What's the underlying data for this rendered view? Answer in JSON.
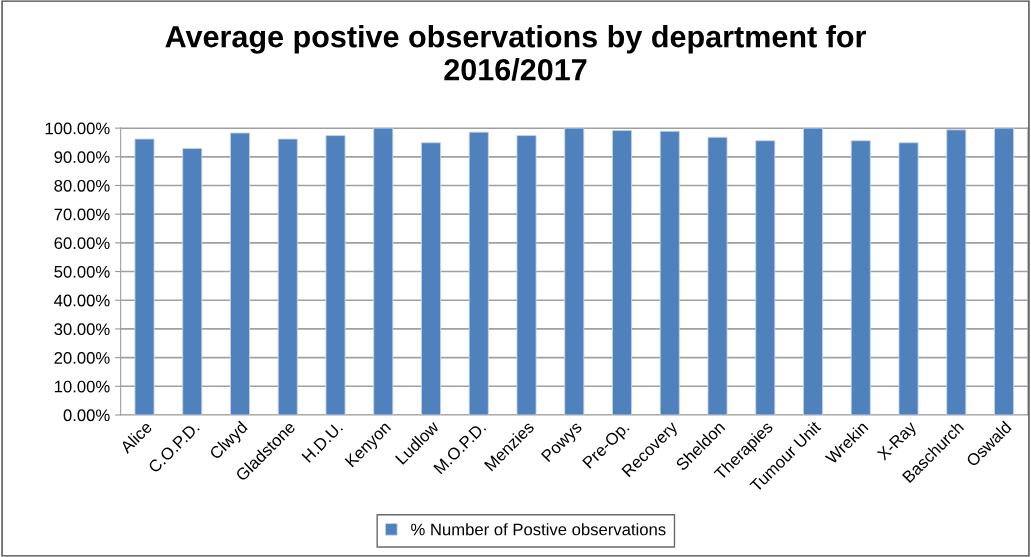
{
  "chart_data": {
    "type": "bar",
    "title": "Average postive observations by department for\n2016/2017",
    "categories": [
      "Alice",
      "C.O.P.D.",
      "Clwyd",
      "Gladstone",
      "H.D.U.",
      "Kenyon",
      "Ludlow",
      "M.O.P.D.",
      "Menzies",
      "Powys",
      "Pre-Op.",
      "Recovery",
      "Sheldon",
      "Therapies",
      "Tumour Unit",
      "Wrekin",
      "X-Ray",
      "Baschurch",
      "Oswald"
    ],
    "series": [
      {
        "name": "% Number of Postive observations",
        "color": "#4f81bd",
        "values": [
          96.2,
          92.9,
          98.3,
          96.2,
          97.4,
          100,
          94.9,
          98.6,
          97.4,
          100,
          99.2,
          98.9,
          96.8,
          95.6,
          100,
          95.6,
          94.9,
          99.4,
          100
        ]
      }
    ],
    "ylim": [
      0,
      100
    ],
    "yticks": [
      {
        "value": 0,
        "label": "0.00%"
      },
      {
        "value": 10,
        "label": "10.00%"
      },
      {
        "value": 20,
        "label": "20.00%"
      },
      {
        "value": 30,
        "label": "30.00%"
      },
      {
        "value": 40,
        "label": "40.00%"
      },
      {
        "value": 50,
        "label": "50.00%"
      },
      {
        "value": 60,
        "label": "60.00%"
      },
      {
        "value": 70,
        "label": "70.00%"
      },
      {
        "value": 80,
        "label": "80.00%"
      },
      {
        "value": 90,
        "label": "90.00%"
      },
      {
        "value": 100,
        "label": "100.00%"
      }
    ],
    "grid": "y",
    "legend": "bottom"
  }
}
